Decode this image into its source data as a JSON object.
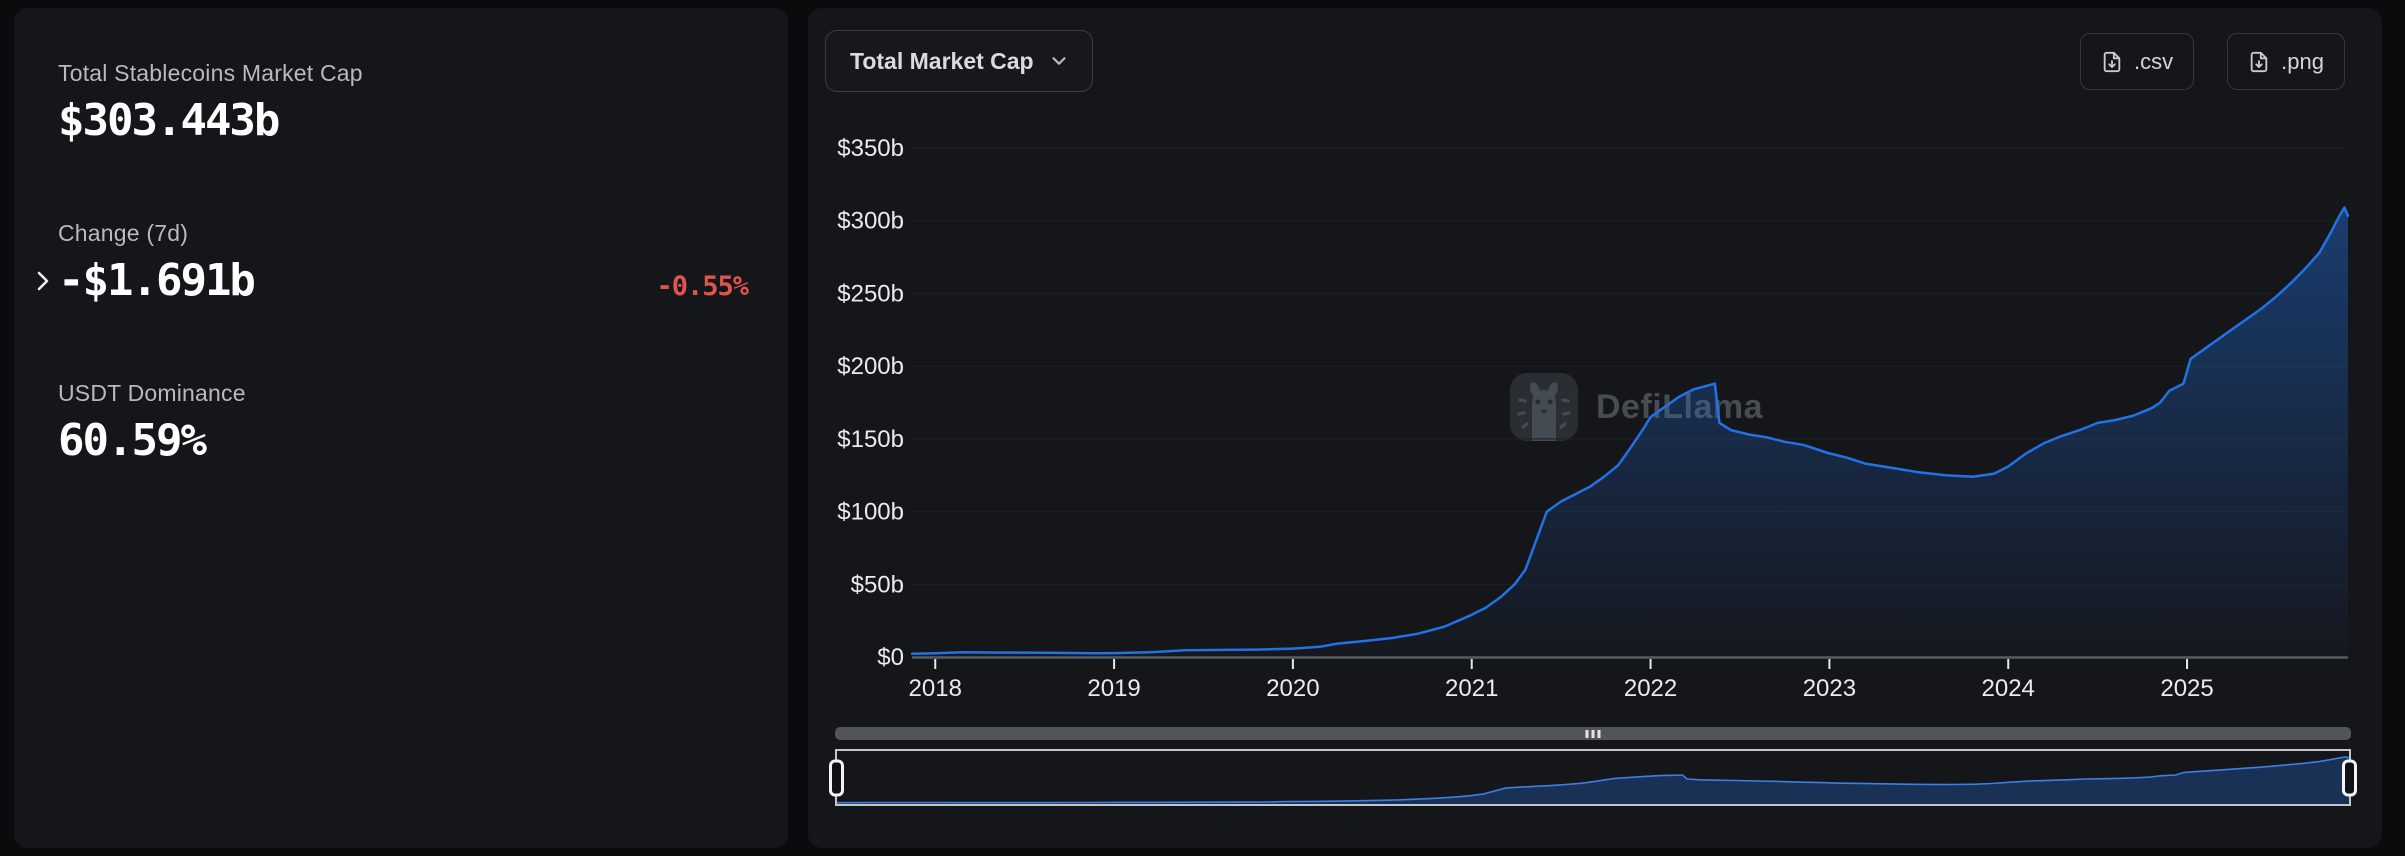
{
  "stats": {
    "mcap_label": "Total Stablecoins Market Cap",
    "mcap_value": "$303.443b",
    "change_label": "Change (7d)",
    "change_value": "-$1.691b",
    "change_pct": "-0.55%",
    "dominance_label": "USDT Dominance",
    "dominance_value": "60.59%"
  },
  "chart_header": {
    "dropdown_label": "Total Market Cap",
    "csv_label": ".csv",
    "png_label": ".png"
  },
  "watermark": {
    "text": "DefiLlama"
  },
  "colors": {
    "accent_blue": "#2172e5",
    "negative_red": "#e0544e",
    "panel_bg": "#15161a",
    "page_bg": "#0a0b0d"
  },
  "chart_data": {
    "type": "area",
    "title": "Total Market Cap",
    "series_name": "Total Stablecoins Market Cap ($b)",
    "xlabel": "",
    "ylabel": "",
    "xlim": [
      2017.87,
      2025.9
    ],
    "ylim": [
      0,
      350
    ],
    "grid": true,
    "legend": false,
    "has_navigator": true,
    "line_color": "#2172e5",
    "yticks": [
      0,
      50,
      100,
      150,
      200,
      250,
      300,
      350
    ],
    "ytick_labels": [
      "$0",
      "$50b",
      "$100b",
      "$150b",
      "$200b",
      "$250b",
      "$300b",
      "$350b"
    ],
    "xticks": [
      2018,
      2019,
      2020,
      2021,
      2022,
      2023,
      2024,
      2025
    ],
    "xtick_labels": [
      "2018",
      "2019",
      "2020",
      "2021",
      "2022",
      "2023",
      "2024",
      "2025"
    ],
    "x": [
      2017.87,
      2018.0,
      2018.15,
      2018.3,
      2018.5,
      2018.7,
      2018.9,
      2019.0,
      2019.2,
      2019.4,
      2019.6,
      2019.8,
      2020.0,
      2020.15,
      2020.25,
      2020.4,
      2020.55,
      2020.7,
      2020.85,
      2021.0,
      2021.08,
      2021.16,
      2021.24,
      2021.3,
      2021.36,
      2021.42,
      2021.5,
      2021.58,
      2021.66,
      2021.74,
      2021.82,
      2021.9,
      2021.96,
      2022.0,
      2022.08,
      2022.16,
      2022.24,
      2022.3,
      2022.36,
      2022.385,
      2022.45,
      2022.55,
      2022.65,
      2022.75,
      2022.85,
      2022.95,
      2023.0,
      2023.1,
      2023.2,
      2023.35,
      2023.5,
      2023.65,
      2023.8,
      2023.92,
      2024.0,
      2024.1,
      2024.2,
      2024.3,
      2024.4,
      2024.5,
      2024.6,
      2024.7,
      2024.8,
      2024.85,
      2024.9,
      2024.98,
      2025.02,
      2025.1,
      2025.18,
      2025.26,
      2025.34,
      2025.42,
      2025.5,
      2025.58,
      2025.66,
      2025.74,
      2025.8,
      2025.85,
      2025.88,
      2025.9
    ],
    "values": [
      2.3,
      2.6,
      3.3,
      3.1,
      3.0,
      2.8,
      2.6,
      2.7,
      3.3,
      4.6,
      4.9,
      5.1,
      5.8,
      7.0,
      9.2,
      11.0,
      13.0,
      16.0,
      21.0,
      29.0,
      34.0,
      41.0,
      50.0,
      60.0,
      80.0,
      100.0,
      107.0,
      112.0,
      117.0,
      124.0,
      132.0,
      146.0,
      157.0,
      165.0,
      172.0,
      179.0,
      184.0,
      186.0,
      188.0,
      161.0,
      156.0,
      153.0,
      151.0,
      148.0,
      146.0,
      142.0,
      140.0,
      137.0,
      133.0,
      130.0,
      127.0,
      125.0,
      124.0,
      126.0,
      131.0,
      140.0,
      147.0,
      152.0,
      156.0,
      161.0,
      163.0,
      166.0,
      171.0,
      175.0,
      183.0,
      188.0,
      205.0,
      212.0,
      219.0,
      226.0,
      233.0,
      240.0,
      248.0,
      257.0,
      267.0,
      278.0,
      291.0,
      303.0,
      309.0,
      303.4
    ]
  }
}
